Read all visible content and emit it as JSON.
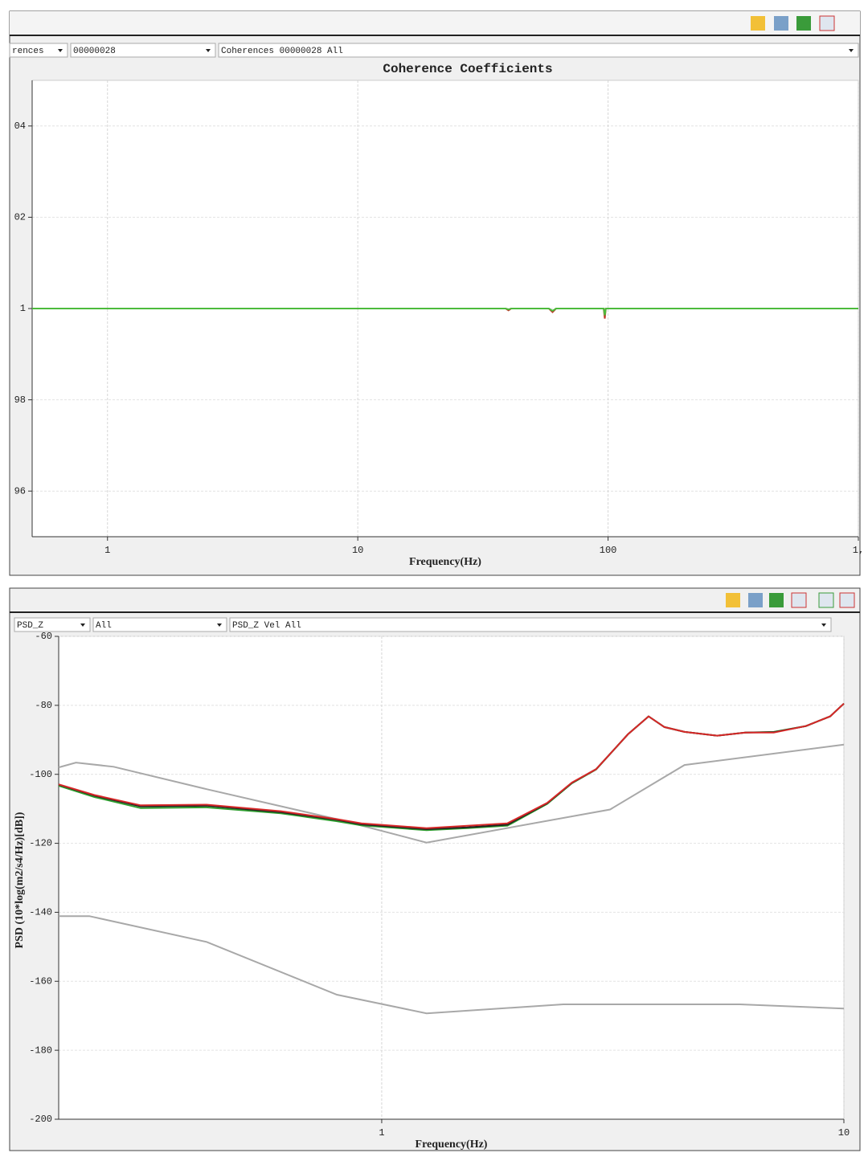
{
  "panels": [
    {
      "selectors": [
        "rences",
        "00000028",
        "Coherences 00000028 All"
      ]
    },
    {
      "selectors": [
        "PSD_Z",
        "All",
        "PSD_Z Vel All"
      ]
    }
  ],
  "chart_data": [
    {
      "type": "line",
      "title": "Coherence Coefficients",
      "x_label": "Frequency(Hz)",
      "xscale": "log",
      "xlim": [
        0.5,
        1000
      ],
      "xticks": [
        1,
        10,
        100,
        {
          "value": 1000,
          "label": "1,"
        }
      ],
      "ylim": [
        0.95,
        1.05
      ],
      "yticks": [
        {
          "value": 0.96,
          "label": "96"
        },
        {
          "value": 0.98,
          "label": "98"
        },
        1,
        {
          "value": 1.02,
          "label": "02"
        },
        {
          "value": 1.04,
          "label": "04"
        }
      ],
      "grid": true,
      "series": [
        {
          "color": "#c0392b",
          "x": [
            0.5,
            39,
            40,
            41,
            58,
            60,
            62,
            96,
            97,
            98,
            1000
          ],
          "values": [
            1,
            1,
            0.9996,
            1,
            1,
            0.9992,
            1,
            1,
            0.9978,
            1,
            1
          ]
        },
        {
          "color": "#4cbb3c",
          "x": [
            0.5,
            39,
            40,
            41,
            58,
            60,
            62,
            96,
            97,
            98,
            1000
          ],
          "values": [
            1,
            1,
            0.9998,
            1,
            1,
            0.9995,
            1,
            1,
            0.9985,
            1,
            1
          ]
        }
      ]
    },
    {
      "type": "line",
      "x_label": "Frequency(Hz)",
      "y_label": "PSD (10*log(m2/s4/Hz)[dB])",
      "xscale": "log",
      "xlim": [
        0.2,
        10
      ],
      "xticks": [
        1,
        10
      ],
      "ylim": [
        -200,
        -60
      ],
      "yticks": [
        -200,
        -180,
        -160,
        -140,
        -120,
        -100,
        -80,
        -60
      ],
      "grid": true,
      "series": [
        {
          "color": "#a8a8a8",
          "x": [
            0.2,
            0.218,
            0.263,
            0.418,
            0.8,
            1.25,
            3.12,
            4.52,
            10
          ],
          "values": [
            -98.0,
            -96.6,
            -97.8,
            -104.3,
            -113.0,
            -119.8,
            -110.2,
            -97.3,
            -91.4
          ]
        },
        {
          "color": "#a8a8a8",
          "x": [
            0.2,
            0.233,
            0.418,
            0.8,
            1.25,
            2.47,
            5.95,
            10
          ],
          "values": [
            -141.1,
            -141.1,
            -148.6,
            -163.9,
            -169.3,
            -166.7,
            -166.7,
            -167.9
          ]
        },
        {
          "color": "#2e9e2e",
          "x": [
            0.2,
            0.239,
            0.301,
            0.418,
            0.605,
            0.8,
            0.904,
            1.25,
            1.53,
            1.87,
            2.28,
            2.58,
            2.91,
            3.41,
            3.78,
            4.09,
            4.52,
            5.32,
            6.12,
            7.05,
            8.28,
            9.34,
            10
          ],
          "values": [
            -103.3,
            -106.6,
            -109.8,
            -109.6,
            -111.3,
            -113.6,
            -114.8,
            -116.2,
            -115.6,
            -114.9,
            -108.6,
            -102.6,
            -98.6,
            -88.4,
            -83.2,
            -86.3,
            -87.7,
            -88.8,
            -87.9,
            -87.7,
            -86.0,
            -83.2,
            -79.5
          ]
        },
        {
          "color": "#222222",
          "x": [
            0.2,
            0.239,
            0.301,
            0.418,
            0.605,
            0.8,
            0.904,
            1.25,
            1.53,
            1.87,
            2.28,
            2.58,
            2.91,
            3.41,
            3.78,
            4.09,
            4.52,
            5.32,
            6.12,
            7.05,
            8.28,
            9.34,
            10
          ],
          "values": [
            -103.0,
            -106.2,
            -109.3,
            -109.1,
            -111.0,
            -113.2,
            -114.5,
            -115.9,
            -115.4,
            -114.6,
            -108.4,
            -102.5,
            -98.5,
            -88.4,
            -83.2,
            -86.3,
            -87.7,
            -88.8,
            -87.9,
            -87.8,
            -86.0,
            -83.2,
            -79.5
          ]
        },
        {
          "color": "#d62828",
          "x": [
            0.2,
            0.239,
            0.301,
            0.418,
            0.605,
            0.8,
            0.904,
            1.25,
            1.53,
            1.87,
            2.28,
            2.58,
            2.91,
            3.41,
            3.78,
            4.09,
            4.52,
            5.32,
            6.12,
            7.05,
            8.28,
            9.34,
            10
          ],
          "values": [
            -102.9,
            -106.0,
            -109.0,
            -108.8,
            -110.7,
            -113.0,
            -114.2,
            -115.6,
            -114.9,
            -114.2,
            -108.3,
            -102.4,
            -98.5,
            -88.4,
            -83.2,
            -86.3,
            -87.7,
            -88.8,
            -87.9,
            -87.9,
            -86.0,
            -83.2,
            -79.5
          ]
        }
      ]
    }
  ]
}
